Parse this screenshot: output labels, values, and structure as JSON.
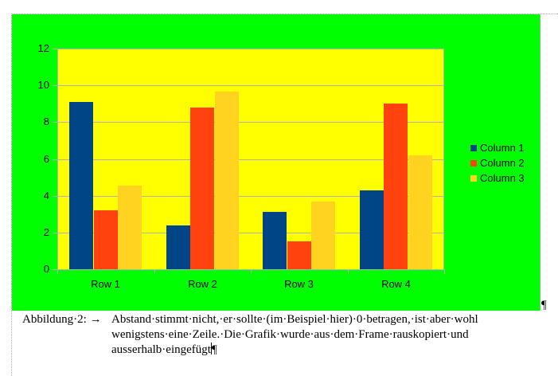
{
  "chart_data": {
    "type": "bar",
    "title": "",
    "xlabel": "",
    "ylabel": "",
    "categories": [
      "Row 1",
      "Row 2",
      "Row 3",
      "Row 4"
    ],
    "series": [
      {
        "name": "Column 1",
        "color": "#004586",
        "values": [
          9.1,
          2.4,
          3.1,
          4.3
        ]
      },
      {
        "name": "Column 2",
        "color": "#ff420e",
        "values": [
          3.2,
          8.8,
          1.5,
          9.02
        ]
      },
      {
        "name": "Column 3",
        "color": "#ffd320",
        "values": [
          4.54,
          9.65,
          3.7,
          6.2
        ]
      }
    ],
    "yticks": [
      "0",
      "2",
      "4",
      "6",
      "8",
      "10",
      "12"
    ],
    "ylim": [
      0,
      12
    ],
    "grid": true,
    "legend_position": "right",
    "background_color": "#00ff00",
    "plot_area_color": "#ffff00"
  },
  "legend": {
    "items": [
      {
        "label": "Column 1",
        "color": "#004586"
      },
      {
        "label": "Column 2",
        "color": "#ff420e"
      },
      {
        "label": "Column 3",
        "color": "#ffd320"
      }
    ]
  },
  "document": {
    "paragraph_mark": "¶",
    "caption": {
      "label": "Abbildung·2: →",
      "line1": "Abstand·stimmt·nicht,·er·sollte·(im·Beispiel·hier)·0·betragen,·ist·aber·wohl",
      "line2": "wenigstens·eine·Zeile.·Die·Grafik·wurde·aus·dem·Frame·rauskopiert·und",
      "line3": "ausserhalb·eingefügt",
      "end_mark": "¶"
    }
  }
}
